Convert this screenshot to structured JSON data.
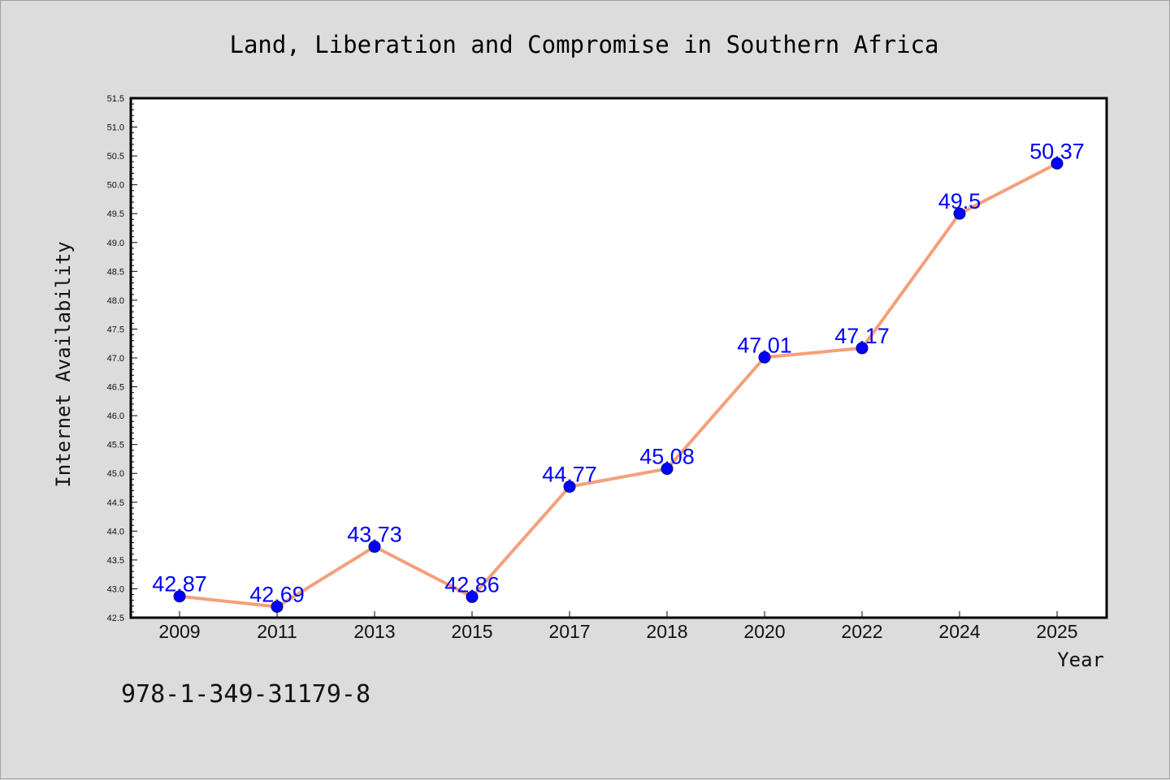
{
  "footer_text": "978-1-349-31179-8",
  "chart_data": {
    "type": "line",
    "title": "Land, Liberation and Compromise in Southern Africa",
    "xlabel": "Year",
    "ylabel": "Internet Availability",
    "categories": [
      "2009",
      "2011",
      "2013",
      "2015",
      "2017",
      "2018",
      "2020",
      "2022",
      "2024",
      "2025"
    ],
    "series": [
      {
        "values": [
          42.87,
          42.69,
          43.73,
          42.86,
          44.77,
          45.08,
          47.01,
          47.17,
          49.5,
          50.37
        ],
        "labels": [
          "42.87",
          "42.69",
          "43.73",
          "42.86",
          "44.77",
          "45.08",
          "47.01",
          "47.17",
          "49.5",
          "50.37"
        ],
        "line_color": "#f4a07a",
        "marker_color": "#0000ff"
      }
    ],
    "ylim": [
      42.5,
      51.5
    ],
    "yticks": [
      "42.5",
      "43.0",
      "43.5",
      "44.0",
      "44.5",
      "45.0",
      "45.5",
      "46.0",
      "46.5",
      "47.0",
      "47.5",
      "48.0",
      "48.5",
      "49.0",
      "49.5",
      "50.0",
      "50.5",
      "51.0",
      "51.5"
    ],
    "grid": false,
    "background_color": "#dcdcdc",
    "plot_background_color": "#ffffff"
  }
}
